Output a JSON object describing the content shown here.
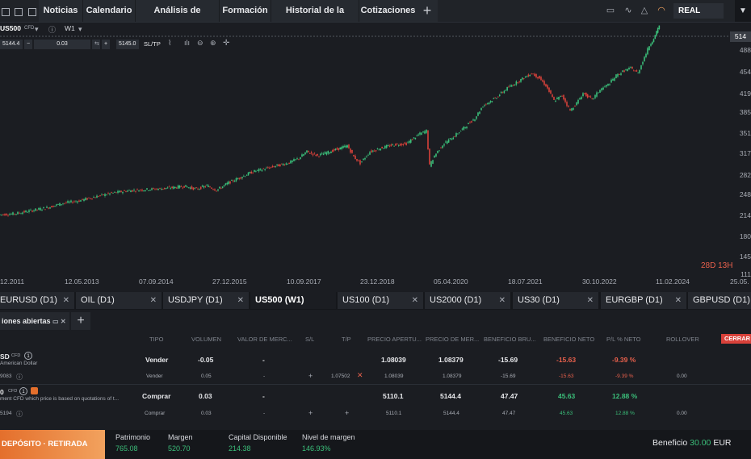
{
  "topnav": {
    "tabs": [
      "Noticias",
      "Calendario",
      "Análisis de mercado",
      "Formación",
      "Historial de la cuenta",
      "Cotizaciones"
    ],
    "account_mode": "REAL"
  },
  "instrument": {
    "symbol": "US500",
    "type_tag": "CFD",
    "timeframe": "W1",
    "bid": "5144.4",
    "volume": "0.03",
    "ask": "5145.0",
    "sltp_label": "SL/TP"
  },
  "chart_data": {
    "type": "candlestick",
    "price_axis": [
      "514",
      "488",
      "454",
      "419",
      "385",
      "351",
      "317",
      "282",
      "248",
      "214",
      "180",
      "145",
      "111"
    ],
    "current_price_label": "514",
    "date_axis": [
      "12.2011",
      "12.05.2013",
      "07.09.2014",
      "27.12.2015",
      "10.09.2017",
      "23.12.2018",
      "05.04.2020",
      "18.07.2021",
      "30.10.2022",
      "11.02.2024",
      "25.05."
    ],
    "timer": "28D 13H",
    "colors": {
      "up": "#3bbf7a",
      "down": "#d8413a"
    },
    "series": [
      [
        0,
        132
      ],
      [
        20,
        134
      ],
      [
        40,
        140
      ],
      [
        60,
        146
      ],
      [
        80,
        155
      ],
      [
        100,
        160
      ],
      [
        120,
        168
      ],
      [
        140,
        175
      ],
      [
        160,
        180
      ],
      [
        180,
        182
      ],
      [
        200,
        184
      ],
      [
        215,
        186
      ],
      [
        230,
        189
      ],
      [
        245,
        183
      ],
      [
        258,
        190
      ],
      [
        270,
        181
      ],
      [
        285,
        196
      ],
      [
        300,
        207
      ],
      [
        315,
        218
      ],
      [
        330,
        224
      ],
      [
        345,
        230
      ],
      [
        360,
        236
      ],
      [
        372,
        245
      ],
      [
        382,
        258
      ],
      [
        395,
        250
      ],
      [
        410,
        258
      ],
      [
        425,
        266
      ],
      [
        432,
        270
      ],
      [
        440,
        248
      ],
      [
        448,
        235
      ],
      [
        460,
        258
      ],
      [
        475,
        266
      ],
      [
        490,
        272
      ],
      [
        505,
        274
      ],
      [
        520,
        292
      ],
      [
        530,
        300
      ],
      [
        534,
        230
      ],
      [
        540,
        250
      ],
      [
        550,
        272
      ],
      [
        565,
        290
      ],
      [
        578,
        308
      ],
      [
        590,
        325
      ],
      [
        600,
        350
      ],
      [
        615,
        365
      ],
      [
        630,
        385
      ],
      [
        645,
        400
      ],
      [
        660,
        415
      ],
      [
        670,
        405
      ],
      [
        678,
        390
      ],
      [
        688,
        360
      ],
      [
        698,
        370
      ],
      [
        708,
        340
      ],
      [
        716,
        355
      ],
      [
        724,
        375
      ],
      [
        735,
        362
      ],
      [
        745,
        382
      ],
      [
        755,
        392
      ],
      [
        765,
        410
      ],
      [
        775,
        420
      ],
      [
        783,
        425
      ],
      [
        792,
        415
      ],
      [
        798,
        440
      ],
      [
        806,
        470
      ],
      [
        813,
        490
      ],
      [
        818,
        510
      ]
    ]
  },
  "instrument_tabs": [
    {
      "label": "EURUSD (D1)"
    },
    {
      "label": "OIL (D1)"
    },
    {
      "label": "USDJPY (D1)"
    },
    {
      "label": "US500 (W1)"
    },
    {
      "label": "US100 (D1)"
    },
    {
      "label": "US2000 (D1)"
    },
    {
      "label": "US30 (D1)"
    },
    {
      "label": "EURGBP (D1)"
    },
    {
      "label": "GBPUSD (D1)"
    }
  ],
  "positions_panel": {
    "title": "iones abiertas",
    "columns": [
      "TIPO",
      "VOLUMEN",
      "VALOR DE MERC...",
      "S/L",
      "T/P",
      "PRECIO APERTU...",
      "PRECIO DE MER...",
      "BENEFICIO BRU...",
      "BENEFICIO NETO",
      "P/L % NETO",
      "ROLLOVER"
    ],
    "close_all": "CERRAR",
    "rows": [
      {
        "symbol": "SD",
        "tag": "CFD",
        "count": "1",
        "desc": "American Dollar",
        "type": "Vender",
        "volume": "-0.05",
        "market_value": "-",
        "open_price": "1.08039",
        "market_price": "1.08379",
        "gross": "-15.69",
        "net": "-15.63",
        "pl_pct": "-9.39 %",
        "sub": {
          "id": "9083",
          "type": "Vender",
          "volume": "0.05",
          "market_value": "-",
          "tp": "1.07502",
          "open_price": "1.08039",
          "market_price": "1.08379",
          "gross": "-15.69",
          "net": "-15.63",
          "pl_pct": "-9.39 %",
          "rollover": "0.00"
        }
      },
      {
        "symbol": "0",
        "tag": "CFD",
        "count": "1",
        "desc": "ment CFD which price is based on quotations of t...",
        "type": "Comprar",
        "volume": "0.03",
        "market_value": "-",
        "open_price": "5110.1",
        "market_price": "5144.4",
        "gross": "47.47",
        "net": "45.63",
        "pl_pct": "12.88 %",
        "sub": {
          "id": "5194",
          "type": "Comprar",
          "volume": "0.03",
          "market_value": "-",
          "open_price": "5110.1",
          "market_price": "5144.4",
          "gross": "47.47",
          "net": "45.63",
          "pl_pct": "12.88 %",
          "rollover": "0.00"
        }
      }
    ]
  },
  "footer": {
    "deposit_label": "DEPÓSITO · RETIRADA",
    "stats": [
      {
        "label": "Patrimonio",
        "value": "765.08"
      },
      {
        "label": "Margen",
        "value": "520.70"
      },
      {
        "label": "Capital Disponible",
        "value": "214.38"
      },
      {
        "label": "Nivel de margen",
        "value": "146.93%"
      }
    ],
    "profit_label": "Beneficio",
    "profit_value": "30.00",
    "currency": "EUR"
  }
}
